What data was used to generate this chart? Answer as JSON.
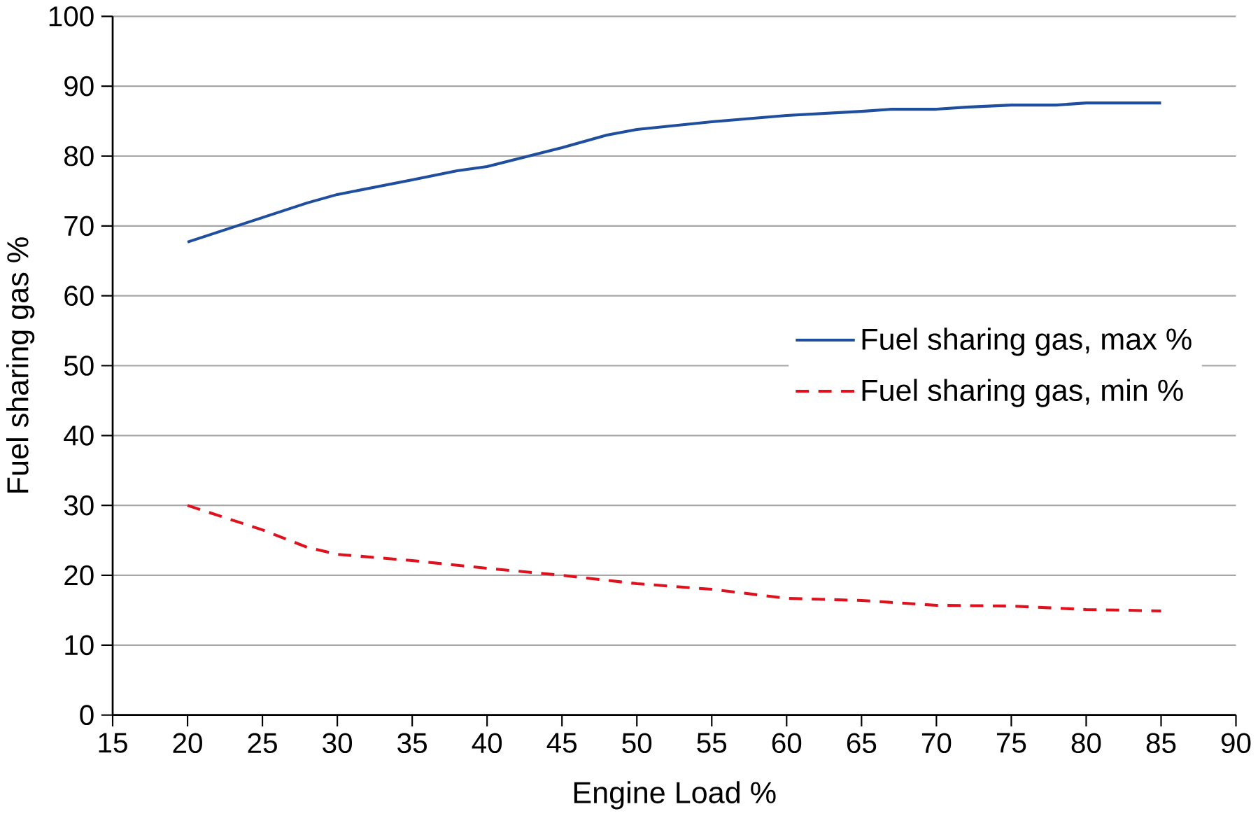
{
  "chart_data": {
    "type": "line",
    "xlabel": "Engine Load %",
    "ylabel": "Fuel sharing gas %",
    "xlim": [
      15,
      90
    ],
    "xticks": [
      15,
      20,
      25,
      30,
      35,
      40,
      45,
      50,
      55,
      60,
      65,
      70,
      75,
      80,
      85,
      90
    ],
    "ylim": [
      0,
      100
    ],
    "yticks": [
      0,
      10,
      20,
      30,
      40,
      50,
      60,
      70,
      80,
      90,
      100
    ],
    "grid": "y",
    "legend": "right",
    "marker": "none",
    "series": [
      {
        "name": "Fuel sharing gas, max %",
        "color": "#1f4e9f",
        "line_style": "solid",
        "x": [
          20,
          25,
          28,
          30,
          35,
          38,
          40,
          45,
          48,
          50,
          55,
          60,
          65,
          67,
          70,
          72,
          75,
          78,
          80,
          85
        ],
        "values": [
          67.7,
          71.2,
          73.3,
          74.5,
          76.6,
          77.9,
          78.5,
          81.2,
          83.0,
          83.8,
          84.9,
          85.8,
          86.4,
          86.7,
          86.7,
          87.0,
          87.3,
          87.3,
          87.6,
          87.6
        ]
      },
      {
        "name": "Fuel sharing gas, min %",
        "color": "#e0101c",
        "line_style": "dashed",
        "x": [
          20,
          25,
          28,
          30,
          35,
          40,
          45,
          50,
          55,
          60,
          65,
          70,
          75,
          80,
          85
        ],
        "values": [
          30,
          26.5,
          24,
          23,
          22.1,
          21,
          20,
          18.8,
          18,
          16.7,
          16.4,
          15.7,
          15.6,
          15.1,
          14.9
        ]
      }
    ]
  }
}
